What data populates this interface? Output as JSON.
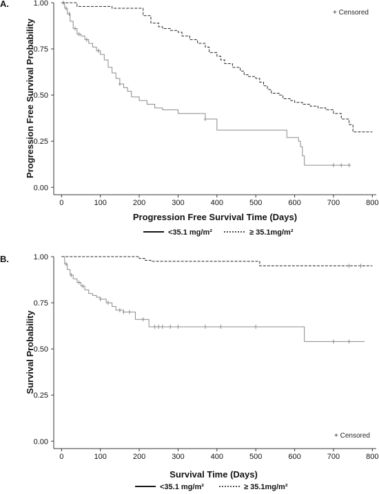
{
  "chart_data": [
    {
      "type": "line",
      "panel_label": "A.",
      "xlabel": "Progression Free Survival Time (Days)",
      "ylabel": "Progression Free Survival Probability",
      "xlim": [
        -20,
        810
      ],
      "ylim": [
        -0.04,
        1.0
      ],
      "xticks": [
        0,
        100,
        200,
        300,
        400,
        500,
        600,
        700,
        800
      ],
      "yticks": [
        "0.00",
        "0.25",
        "0.50",
        "0.75",
        "1.00"
      ],
      "annotation": "+ Censored",
      "legend_position": "bottom",
      "legend": [
        "<35.1 mg/m²",
        "≥ 35.1mg/m²"
      ],
      "series": [
        {
          "name": "<35.1 mg/m²",
          "style": "solid",
          "x": [
            0,
            8,
            15,
            22,
            30,
            40,
            50,
            60,
            70,
            80,
            90,
            100,
            110,
            120,
            130,
            140,
            150,
            160,
            170,
            180,
            200,
            220,
            240,
            260,
            300,
            370,
            400,
            500,
            575,
            580,
            610,
            615,
            620,
            625,
            745
          ],
          "y": [
            1.0,
            0.97,
            0.94,
            0.9,
            0.86,
            0.83,
            0.82,
            0.8,
            0.78,
            0.76,
            0.74,
            0.72,
            0.69,
            0.65,
            0.62,
            0.59,
            0.56,
            0.54,
            0.52,
            0.49,
            0.47,
            0.45,
            0.43,
            0.42,
            0.4,
            0.37,
            0.31,
            0.31,
            0.31,
            0.27,
            0.25,
            0.22,
            0.17,
            0.12,
            0.12
          ],
          "censored_x": [
            5,
            12,
            20,
            35,
            45,
            65,
            95,
            150,
            370,
            700,
            720,
            740
          ]
        },
        {
          "name": "≥ 35.1mg/m²",
          "style": "dashed",
          "x": [
            0,
            40,
            130,
            210,
            230,
            250,
            260,
            280,
            300,
            310,
            330,
            350,
            370,
            380,
            400,
            410,
            420,
            440,
            460,
            470,
            480,
            500,
            510,
            520,
            530,
            540,
            560,
            570,
            590,
            600,
            620,
            640,
            660,
            680,
            700,
            720,
            740,
            750,
            800
          ],
          "y": [
            1.0,
            0.98,
            0.97,
            0.93,
            0.89,
            0.87,
            0.86,
            0.85,
            0.84,
            0.82,
            0.8,
            0.78,
            0.76,
            0.73,
            0.71,
            0.69,
            0.67,
            0.65,
            0.63,
            0.61,
            0.6,
            0.59,
            0.57,
            0.55,
            0.53,
            0.51,
            0.5,
            0.48,
            0.47,
            0.46,
            0.45,
            0.44,
            0.43,
            0.42,
            0.4,
            0.37,
            0.34,
            0.3,
            0.3
          ]
        }
      ]
    },
    {
      "type": "line",
      "panel_label": "B.",
      "xlabel": "Survival Time (Days)",
      "ylabel": "Survival Probability",
      "xlim": [
        -20,
        810
      ],
      "ylim": [
        -0.04,
        1.0
      ],
      "xticks": [
        0,
        100,
        200,
        300,
        400,
        500,
        600,
        700,
        800
      ],
      "yticks": [
        "0.00",
        "0.25",
        "0.50",
        "0.75",
        "1.00"
      ],
      "annotation": "+ Censored",
      "legend_position": "bottom",
      "legend": [
        "<35.1 mg/m²",
        "≥ 35.1mg/m²"
      ],
      "series": [
        {
          "name": "<35.1 mg/m²",
          "style": "solid",
          "x": [
            0,
            8,
            15,
            22,
            30,
            40,
            50,
            60,
            70,
            80,
            90,
            100,
            115,
            130,
            140,
            160,
            190,
            225,
            620,
            625,
            780
          ],
          "y": [
            1.0,
            0.96,
            0.93,
            0.9,
            0.88,
            0.86,
            0.84,
            0.82,
            0.8,
            0.79,
            0.78,
            0.77,
            0.75,
            0.73,
            0.71,
            0.7,
            0.66,
            0.62,
            0.62,
            0.54,
            0.54
          ],
          "censored_x": [
            12,
            25,
            45,
            55,
            100,
            120,
            150,
            160,
            175,
            210,
            240,
            250,
            260,
            280,
            300,
            370,
            410,
            500,
            700,
            740
          ]
        },
        {
          "name": "≥ 35.1mg/m²",
          "style": "dashed",
          "x": [
            0,
            200,
            215,
            230,
            500,
            510,
            800
          ],
          "y": [
            1.0,
            0.99,
            0.98,
            0.975,
            0.975,
            0.95,
            0.95
          ],
          "censored_x": [
            740,
            770
          ]
        }
      ]
    }
  ]
}
